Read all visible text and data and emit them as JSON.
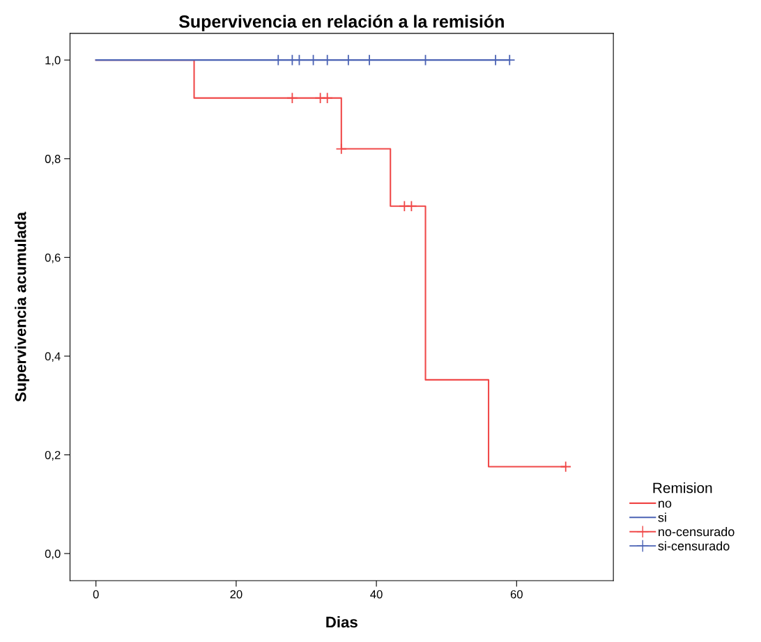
{
  "chart_data": {
    "type": "step",
    "title": "Supervivencia en relación a la remisión",
    "xlabel": "Dias",
    "ylabel": "Supervivencia acumulada",
    "legend_title": "Remision",
    "legend": "right",
    "grid": false,
    "series": [
      {
        "name": "no",
        "color": "#f04848",
        "x": [
          0,
          14,
          35,
          42,
          47,
          56,
          67
        ],
        "values": [
          1.0,
          0.923,
          0.82,
          0.704,
          0.352,
          0.176,
          0.176
        ]
      },
      {
        "name": "si",
        "color": "#4a62b4",
        "x": [
          0,
          59
        ],
        "values": [
          1.0,
          1.0
        ]
      },
      {
        "name": "no-censurado",
        "type": "scatter",
        "marker": "cross",
        "color": "#f04848",
        "x": [
          28,
          32,
          33,
          35,
          44,
          45,
          67
        ],
        "values": [
          0.923,
          0.923,
          0.923,
          0.82,
          0.704,
          0.704,
          0.176
        ]
      },
      {
        "name": "si-censurado",
        "type": "scatter",
        "marker": "cross",
        "color": "#4a62b4",
        "x": [
          26,
          28,
          29,
          31,
          33,
          36,
          39,
          47,
          57,
          59
        ],
        "values": [
          1.0,
          1.0,
          1.0,
          1.0,
          1.0,
          1.0,
          1.0,
          1.0,
          1.0,
          1.0
        ]
      }
    ],
    "xlim": [
      -3.7,
      73.8
    ],
    "xticks": [
      0,
      20,
      40,
      60
    ],
    "ylim": [
      -0.055,
      1.054
    ],
    "yticks": [
      {
        "value": 0.0,
        "label": "0,0"
      },
      {
        "value": 0.2,
        "label": "0,2"
      },
      {
        "value": 0.4,
        "label": "0,4"
      },
      {
        "value": 0.6,
        "label": "0,6"
      },
      {
        "value": 0.8,
        "label": "0,8"
      },
      {
        "value": 1.0,
        "label": "1,0"
      }
    ]
  }
}
